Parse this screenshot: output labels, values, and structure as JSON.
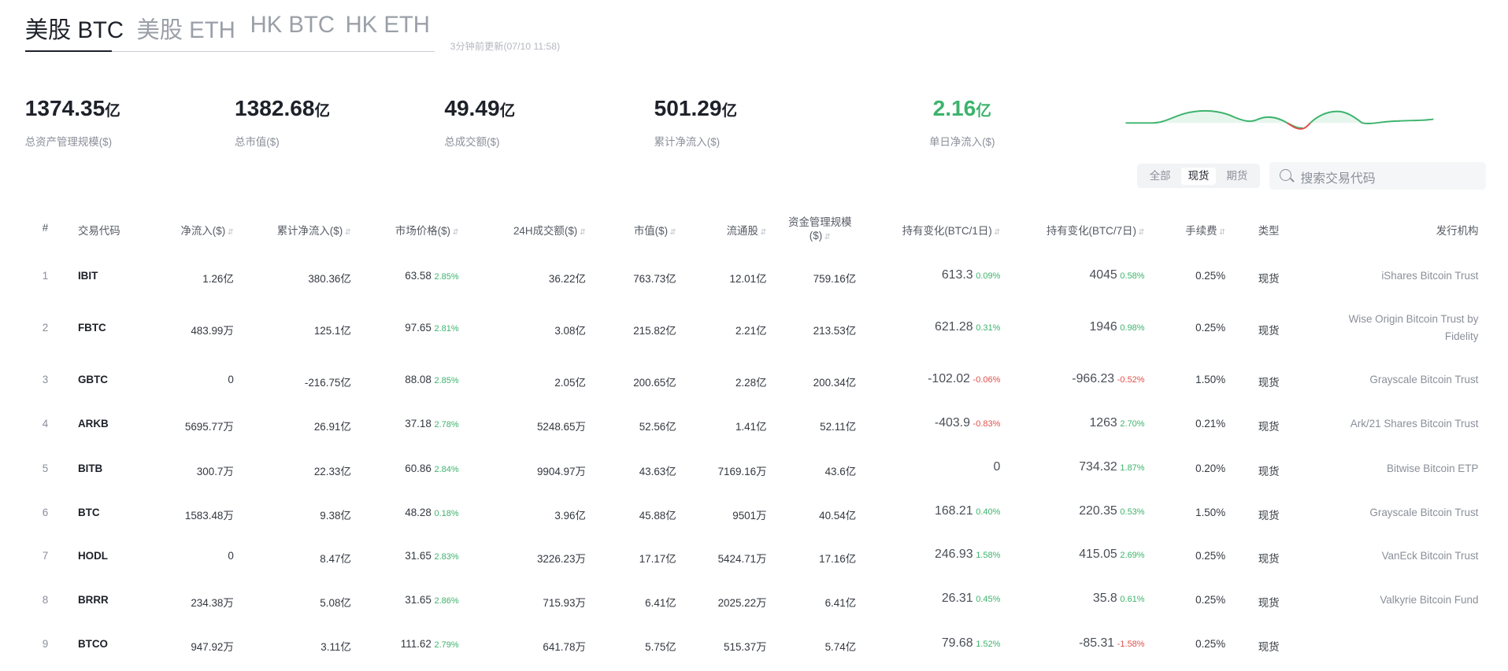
{
  "tabs": [
    "美股 BTC",
    "美股 ETH",
    "HK BTC",
    "HK ETH"
  ],
  "updated": "3分钟前更新(07/10 11:58)",
  "stats": [
    {
      "value": "1374.35",
      "unit": "亿",
      "label": "总资产管理规模($)"
    },
    {
      "value": "1382.68",
      "unit": "亿",
      "label": "总市值($)"
    },
    {
      "value": "49.49",
      "unit": "亿",
      "label": "总成交额($)"
    },
    {
      "value": "501.29",
      "unit": "亿",
      "label": "累计净流入($)"
    },
    {
      "value": "2.16",
      "unit": "亿",
      "label": "单日净流入($)"
    }
  ],
  "filters": {
    "all": "全部",
    "spot": "现货",
    "futures": "期货"
  },
  "search": {
    "placeholder": "搜索交易代码"
  },
  "columns": [
    "#",
    "交易代码",
    "净流入($)",
    "累计净流入($)",
    "市场价格($)",
    "24H成交额($)",
    "市值($)",
    "流通股",
    "资金管理规模($)",
    "持有变化(BTC/1日)",
    "持有变化(BTC/7日)",
    "手续费",
    "类型",
    "发行机构"
  ],
  "rows": [
    {
      "n": "1",
      "code": "IBIT",
      "inflow": "1.26亿",
      "cum": "380.36亿",
      "price": "63.58",
      "pchg": "2.85%",
      "vol": "36.22亿",
      "mcap": "763.73亿",
      "shares": "12.01亿",
      "aum": "759.16亿",
      "h1": "613.3",
      "h1c": "0.09%",
      "h7": "4045",
      "h7c": "0.58%",
      "fee": "0.25%",
      "type": "现货",
      "issuer": [
        "iShares Bitcoin Trust"
      ]
    },
    {
      "n": "2",
      "code": "FBTC",
      "inflow": "483.99万",
      "cum": "125.1亿",
      "price": "97.65",
      "pchg": "2.81%",
      "vol": "3.08亿",
      "mcap": "215.82亿",
      "shares": "2.21亿",
      "aum": "213.53亿",
      "h1": "621.28",
      "h1c": "0.31%",
      "h7": "1946",
      "h7c": "0.98%",
      "fee": "0.25%",
      "type": "现货",
      "issuer": [
        "Wise Origin Bitcoin Trust by",
        "Fidelity"
      ]
    },
    {
      "n": "3",
      "code": "GBTC",
      "inflow": "0",
      "cum": "-216.75亿",
      "price": "88.08",
      "pchg": "2.85%",
      "vol": "2.05亿",
      "mcap": "200.65亿",
      "shares": "2.28亿",
      "aum": "200.34亿",
      "h1": "-102.02",
      "h1c": "-0.06%",
      "h7": "-966.23",
      "h7c": "-0.52%",
      "fee": "1.50%",
      "type": "现货",
      "issuer": [
        "Grayscale Bitcoin Trust"
      ]
    },
    {
      "n": "4",
      "code": "ARKB",
      "inflow": "5695.77万",
      "cum": "26.91亿",
      "price": "37.18",
      "pchg": "2.78%",
      "vol": "5248.65万",
      "mcap": "52.56亿",
      "shares": "1.41亿",
      "aum": "52.11亿",
      "h1": "-403.9",
      "h1c": "-0.83%",
      "h7": "1263",
      "h7c": "2.70%",
      "fee": "0.21%",
      "type": "现货",
      "issuer": [
        "Ark/21 Shares Bitcoin Trust"
      ]
    },
    {
      "n": "5",
      "code": "BITB",
      "inflow": "300.7万",
      "cum": "22.33亿",
      "price": "60.86",
      "pchg": "2.84%",
      "vol": "9904.97万",
      "mcap": "43.63亿",
      "shares": "7169.16万",
      "aum": "43.6亿",
      "h1": "0",
      "h1c": "",
      "h7": "734.32",
      "h7c": "1.87%",
      "fee": "0.20%",
      "type": "现货",
      "issuer": [
        "Bitwise Bitcoin ETP"
      ]
    },
    {
      "n": "6",
      "code": "BTC",
      "inflow": "1583.48万",
      "cum": "9.38亿",
      "price": "48.28",
      "pchg": "0.18%",
      "vol": "3.96亿",
      "mcap": "45.88亿",
      "shares": "9501万",
      "aum": "40.54亿",
      "h1": "168.21",
      "h1c": "0.40%",
      "h7": "220.35",
      "h7c": "0.53%",
      "fee": "1.50%",
      "type": "现货",
      "issuer": [
        "Grayscale Bitcoin Trust"
      ]
    },
    {
      "n": "7",
      "code": "HODL",
      "inflow": "0",
      "cum": "8.47亿",
      "price": "31.65",
      "pchg": "2.83%",
      "vol": "3226.23万",
      "mcap": "17.17亿",
      "shares": "5424.71万",
      "aum": "17.16亿",
      "h1": "246.93",
      "h1c": "1.58%",
      "h7": "415.05",
      "h7c": "2.69%",
      "fee": "0.25%",
      "type": "现货",
      "issuer": [
        "VanEck Bitcoin Trust"
      ]
    },
    {
      "n": "8",
      "code": "BRRR",
      "inflow": "234.38万",
      "cum": "5.08亿",
      "price": "31.65",
      "pchg": "2.86%",
      "vol": "715.93万",
      "mcap": "6.41亿",
      "shares": "2025.22万",
      "aum": "6.41亿",
      "h1": "26.31",
      "h1c": "0.45%",
      "h7": "35.8",
      "h7c": "0.61%",
      "fee": "0.25%",
      "type": "现货",
      "issuer": [
        "Valkyrie Bitcoin Fund"
      ]
    },
    {
      "n": "9",
      "code": "BTCO",
      "inflow": "947.92万",
      "cum": "3.11亿",
      "price": "111.62",
      "pchg": "2.79%",
      "vol": "641.78万",
      "mcap": "5.75亿",
      "shares": "515.37万",
      "aum": "5.74亿",
      "h1": "79.68",
      "h1c": "1.52%",
      "h7": "-85.31",
      "h7c": "-1.58%",
      "fee": "0.25%",
      "type": "现货",
      "issuer": []
    }
  ],
  "colors": {
    "positive": "#3db36d",
    "negative": "#e0504a",
    "text": "#1d2129"
  }
}
